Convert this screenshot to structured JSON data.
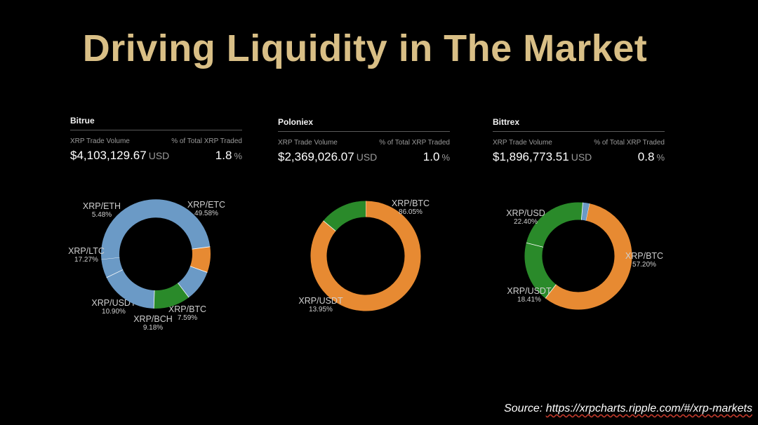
{
  "page": {
    "title": "Driving Liquidity in The Market",
    "source_prefix": "Source: ",
    "source_url": "https://xrpcharts.ripple.com/#/xrp-markets"
  },
  "exchanges": [
    {
      "name": "Bitrue",
      "volume_label": "XRP Trade Volume",
      "percent_label": "% of Total XRP Traded",
      "volume": "$4,103,129.67",
      "volume_unit": "USD",
      "percent": "1.8",
      "percent_unit": "%"
    },
    {
      "name": "Poloniex",
      "volume_label": "XRP Trade Volume",
      "percent_label": "% of Total XRP Traded",
      "volume": "$2,369,026.07",
      "volume_unit": "USD",
      "percent": "1.0",
      "percent_unit": "%"
    },
    {
      "name": "Bittrex",
      "volume_label": "XRP Trade Volume",
      "percent_label": "% of Total XRP Traded",
      "volume": "$1,896,773.51",
      "volume_unit": "USD",
      "percent": "0.8",
      "percent_unit": "%"
    }
  ],
  "colors": {
    "title": "#d9bf86",
    "blue": "#6b9ac6",
    "orange": "#e78a32",
    "green": "#2a8a2a",
    "label": "#cfcfcf"
  },
  "chart_data": [
    {
      "type": "pie",
      "title": "Bitrue",
      "slices": [
        {
          "label": "XRP/ETC",
          "value": 49.58,
          "pct": "49.58%",
          "color": "#6b9ac6"
        },
        {
          "label": "XRP/BTC",
          "value": 7.59,
          "pct": "7.59%",
          "color": "#e78a32"
        },
        {
          "label": "XRP/BCH",
          "value": 9.18,
          "pct": "9.18%",
          "color": "#6b9ac6"
        },
        {
          "label": "XRP/USDT",
          "value": 10.9,
          "pct": "10.90%",
          "color": "#2a8a2a"
        },
        {
          "label": "XRP/LTC",
          "value": 17.27,
          "pct": "17.27%",
          "color": "#6b9ac6"
        },
        {
          "label": "XRP/ETH",
          "value": 5.48,
          "pct": "5.48%",
          "color": "#6b9ac6"
        }
      ]
    },
    {
      "type": "pie",
      "title": "Poloniex",
      "slices": [
        {
          "label": "XRP/BTC",
          "value": 86.05,
          "pct": "86.05%",
          "color": "#e78a32"
        },
        {
          "label": "XRP/USDT",
          "value": 13.95,
          "pct": "13.95%",
          "color": "#2a8a2a"
        }
      ]
    },
    {
      "type": "pie",
      "title": "Bittrex",
      "slices": [
        {
          "label": "XRP/BTC",
          "value": 57.2,
          "pct": "57.20%",
          "color": "#e78a32"
        },
        {
          "label": "XRP/USDT",
          "value": 18.41,
          "pct": "18.41%",
          "color": "#2a8a2a"
        },
        {
          "label": "XRP/USD",
          "value": 22.4,
          "pct": "22.40%",
          "color": "#2a8a2a"
        },
        {
          "label": "",
          "value": 1.99,
          "pct": "",
          "color": "#6b9ac6"
        }
      ]
    }
  ]
}
